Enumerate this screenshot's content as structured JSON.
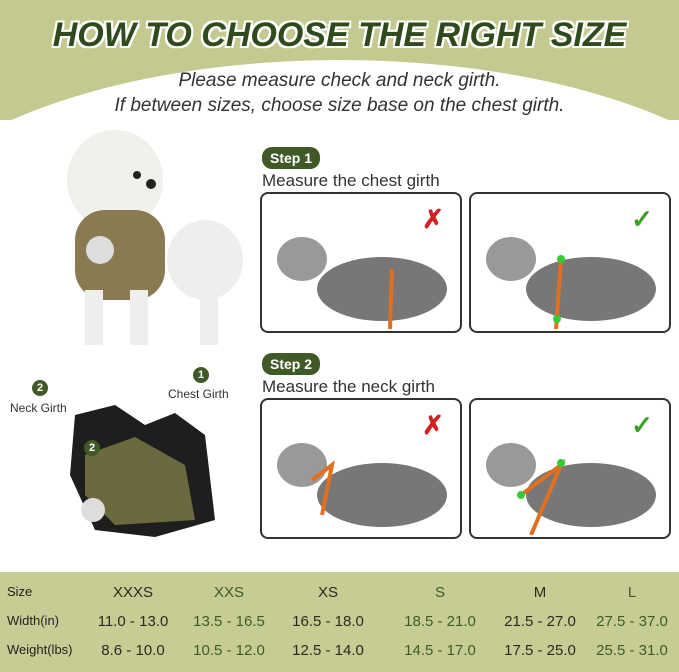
{
  "title": "HOW TO CHOOSE THE RIGHT SIZE",
  "subtitle_lines": [
    "Please measure check and neck girth.",
    "If between sizes, choose size base on the chest girth."
  ],
  "steps": [
    {
      "badge": "Step 1",
      "text": "Measure the chest girth",
      "wrong_icon": "x-mark-icon",
      "right_icon": "check-mark-icon"
    },
    {
      "badge": "Step 2",
      "text": "Measure the neck girth",
      "wrong_icon": "x-mark-icon",
      "right_icon": "check-mark-icon"
    }
  ],
  "harness_labels": {
    "neck": "Neck Girth",
    "neck_num": "2",
    "chest": "Chest Girth",
    "chest_num": "1",
    "inner_num": "2"
  },
  "colors": {
    "band": "#c3c98f",
    "accent": "#3f5a26",
    "strap": "#e07020"
  },
  "size_table": {
    "row_headers": [
      "Size",
      "Width(in)",
      "Weight(lbs)"
    ],
    "sizes": [
      "XXXS",
      "XXS",
      "XS",
      "S",
      "M",
      "L"
    ],
    "width": [
      "11.0 - 13.0",
      "13.5 - 16.5",
      "16.5 - 18.0",
      "18.5 - 21.0",
      "21.5 - 27.0",
      "27.5 - 37.0"
    ],
    "weight": [
      "8.6 - 10.0",
      "10.5 - 12.0",
      "12.5 - 14.0",
      "14.5 - 17.0",
      "17.5 - 25.0",
      "25.5 - 31.0"
    ]
  }
}
